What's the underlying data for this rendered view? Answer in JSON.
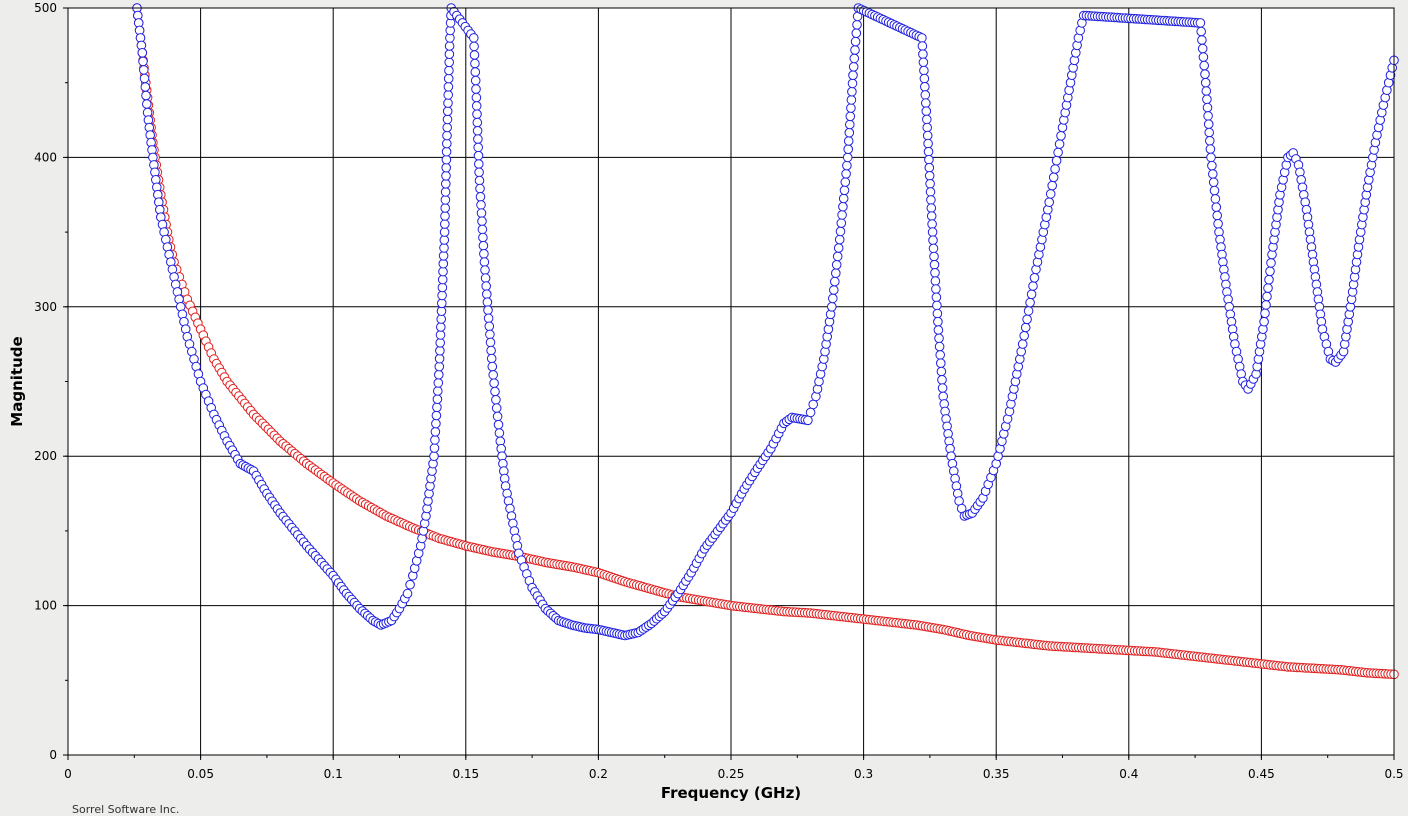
{
  "chart_data": {
    "type": "scatter",
    "title": "",
    "xlabel": "Frequency (GHz)",
    "ylabel": "Magnitude",
    "xlim": [
      0,
      0.5
    ],
    "ylim": [
      0,
      500
    ],
    "x_ticks": [
      "0",
      "0.05",
      "0.1",
      "0.15",
      "0.2",
      "0.25",
      "0.3",
      "0.35",
      "0.4",
      "0.45",
      "0.5"
    ],
    "y_ticks": [
      "0",
      "100",
      "200",
      "300",
      "400",
      "500"
    ],
    "grid": true,
    "legend": "none",
    "series": [
      {
        "color": "#e02020",
        "marker": "circle-open",
        "x": [
          0.026,
          0.028,
          0.03,
          0.032,
          0.035,
          0.038,
          0.04,
          0.045,
          0.05,
          0.055,
          0.06,
          0.07,
          0.08,
          0.09,
          0.1,
          0.11,
          0.12,
          0.13,
          0.14,
          0.15,
          0.16,
          0.17,
          0.18,
          0.19,
          0.2,
          0.21,
          0.22,
          0.23,
          0.24,
          0.25,
          0.26,
          0.27,
          0.28,
          0.29,
          0.3,
          0.31,
          0.32,
          0.33,
          0.34,
          0.35,
          0.36,
          0.37,
          0.38,
          0.39,
          0.4,
          0.41,
          0.42,
          0.43,
          0.44,
          0.45,
          0.46,
          0.47,
          0.48,
          0.49,
          0.5
        ],
        "y": [
          500,
          470,
          440,
          410,
          375,
          345,
          330,
          305,
          285,
          265,
          250,
          228,
          210,
          195,
          182,
          170,
          160,
          152,
          145,
          140,
          136,
          133,
          129,
          126,
          122,
          116,
          111,
          106,
          103,
          100,
          98,
          96,
          95,
          93,
          91,
          89,
          87,
          84,
          80,
          77,
          75,
          73,
          72,
          71,
          70,
          69,
          67,
          65,
          63,
          61,
          59,
          58,
          57,
          55,
          54
        ]
      },
      {
        "color": "#2020e0",
        "marker": "circle-open",
        "x": [
          0.026,
          0.028,
          0.03,
          0.032,
          0.035,
          0.04,
          0.045,
          0.05,
          0.055,
          0.06,
          0.065,
          0.068,
          0.07,
          0.075,
          0.08,
          0.09,
          0.1,
          0.105,
          0.11,
          0.115,
          0.118,
          0.122,
          0.125,
          0.128,
          0.13,
          0.133,
          0.135,
          0.138,
          0.14,
          0.142,
          0.143,
          0.144,
          0.1445,
          0.153,
          0.154,
          0.155,
          0.157,
          0.16,
          0.163,
          0.165,
          0.17,
          0.175,
          0.18,
          0.185,
          0.19,
          0.195,
          0.2,
          0.205,
          0.21,
          0.215,
          0.22,
          0.225,
          0.23,
          0.235,
          0.24,
          0.245,
          0.25,
          0.255,
          0.26,
          0.265,
          0.27,
          0.273,
          0.276,
          0.279,
          0.282,
          0.285,
          0.288,
          0.291,
          0.294,
          0.296,
          0.298,
          0.322,
          0.324,
          0.326,
          0.328,
          0.33,
          0.333,
          0.336,
          0.338,
          0.341,
          0.345,
          0.35,
          0.355,
          0.36,
          0.365,
          0.37,
          0.375,
          0.378,
          0.381,
          0.383,
          0.427,
          0.429,
          0.431,
          0.434,
          0.437,
          0.44,
          0.443,
          0.445,
          0.448,
          0.451,
          0.454,
          0.457,
          0.46,
          0.462,
          0.464,
          0.467,
          0.47,
          0.473,
          0.476,
          0.478,
          0.481,
          0.484,
          0.487,
          0.49,
          0.493,
          0.496,
          0.5
        ],
        "y": [
          500,
          470,
          430,
          400,
          360,
          320,
          280,
          250,
          228,
          210,
          195,
          192,
          190,
          175,
          162,
          140,
          120,
          108,
          98,
          90,
          87,
          90,
          98,
          108,
          120,
          140,
          160,
          200,
          260,
          350,
          420,
          480,
          500,
          480,
          440,
          390,
          330,
          260,
          210,
          180,
          135,
          112,
          98,
          90,
          87,
          85,
          84,
          82,
          80,
          82,
          88,
          96,
          108,
          122,
          138,
          150,
          162,
          178,
          192,
          205,
          222,
          226,
          225,
          224,
          240,
          265,
          300,
          345,
          400,
          455,
          500,
          480,
          420,
          350,
          290,
          240,
          200,
          170,
          160,
          162,
          172,
          195,
          230,
          275,
          325,
          370,
          420,
          450,
          480,
          495,
          490,
          450,
          400,
          350,
          310,
          275,
          250,
          245,
          255,
          290,
          335,
          375,
          400,
          403,
          395,
          365,
          325,
          285,
          265,
          263,
          270,
          305,
          345,
          380,
          410,
          435,
          465
        ]
      }
    ]
  },
  "footer_text": "Sorrel Software Inc."
}
